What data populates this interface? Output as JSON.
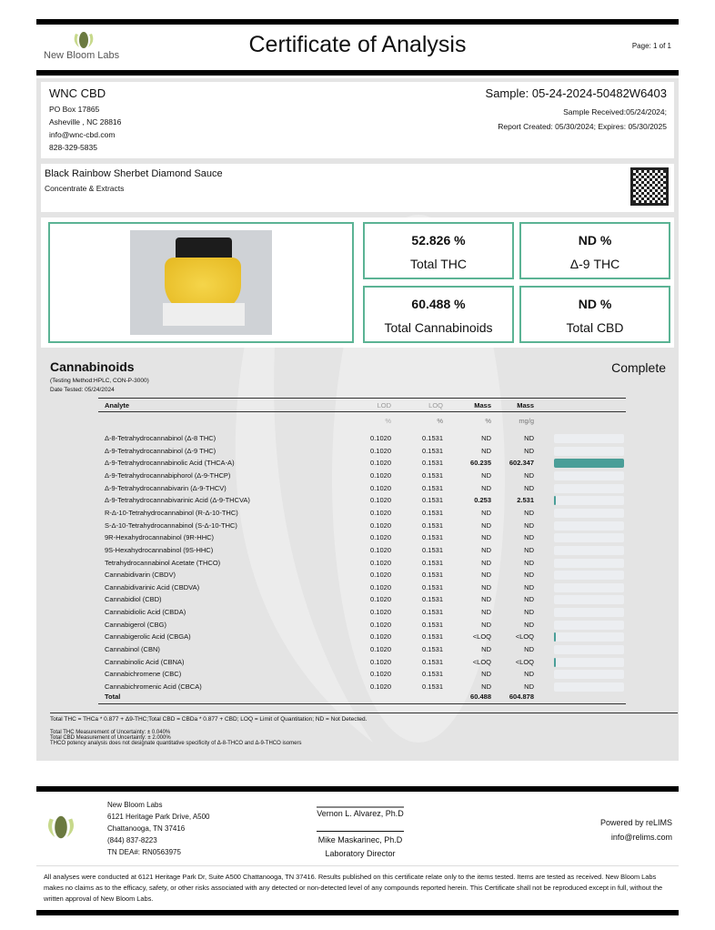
{
  "header": {
    "lab_name": "New Bloom Labs",
    "title": "Certificate of Analysis",
    "page": "Page: 1 of 1"
  },
  "client": {
    "name": "WNC CBD",
    "address1": "PO Box 17865",
    "address2": "Asheville , NC 28816",
    "email": "info@wnc-cbd.com",
    "phone": "828-329-5835"
  },
  "sample": {
    "id": "Sample: 05-24-2024-50482W6403",
    "received": "Sample Received:05/24/2024;",
    "report": "Report Created: 05/30/2024; Expires: 05/30/2025"
  },
  "product": {
    "name": "Black Rainbow Sherbet Diamond Sauce",
    "category": "Concentrate & Extracts"
  },
  "summary": [
    {
      "value": "52.826 %",
      "label": "Total THC"
    },
    {
      "value": "ND %",
      "label": "Δ-9 THC"
    },
    {
      "value": "60.488 %",
      "label": "Total Cannabinoids"
    },
    {
      "value": "ND %",
      "label": "Total CBD"
    }
  ],
  "cannabinoids": {
    "title": "Cannabinoids",
    "status": "Complete",
    "method": "(Testing Method:HPLC, CON-P-3000)",
    "date": "Date Tested: 05/24/2024",
    "headers": [
      "Analyte",
      "LOD",
      "LOQ",
      "Mass",
      "Mass"
    ],
    "units": [
      "",
      "%",
      "%",
      "%",
      "mg/g"
    ],
    "rows": [
      [
        "Δ-8-Tetrahydrocannabinol (Δ-8 THC)",
        "0.1020",
        "0.1531",
        "ND",
        "ND"
      ],
      [
        "Δ-9-Tetrahydrocannabinol (Δ-9 THC)",
        "0.1020",
        "0.1531",
        "ND",
        "ND"
      ],
      [
        "Δ-9-Tetrahydrocannabinolic Acid (THCA-A)",
        "0.1020",
        "0.1531",
        "60.235",
        "602.347"
      ],
      [
        "Δ-9-Tetrahydrocannabiphorol (Δ-9-THCP)",
        "0.1020",
        "0.1531",
        "ND",
        "ND"
      ],
      [
        "Δ-9-Tetrahydrocannabivarin (Δ-9-THCV)",
        "0.1020",
        "0.1531",
        "ND",
        "ND"
      ],
      [
        "Δ-9-Tetrahydrocannabivarinic Acid (Δ-9-THCVA)",
        "0.1020",
        "0.1531",
        "0.253",
        "2.531"
      ],
      [
        "R-Δ-10-Tetrahydrocannabinol (R-Δ-10-THC)",
        "0.1020",
        "0.1531",
        "ND",
        "ND"
      ],
      [
        "S-Δ-10-Tetrahydrocannabinol (S-Δ-10-THC)",
        "0.1020",
        "0.1531",
        "ND",
        "ND"
      ],
      [
        "9R-Hexahydrocannabinol (9R-HHC)",
        "0.1020",
        "0.1531",
        "ND",
        "ND"
      ],
      [
        "9S-Hexahydrocannabinol (9S-HHC)",
        "0.1020",
        "0.1531",
        "ND",
        "ND"
      ],
      [
        "Tetrahydrocannabinol Acetate (THCO)",
        "0.1020",
        "0.1531",
        "ND",
        "ND"
      ],
      [
        "Cannabidivarin (CBDV)",
        "0.1020",
        "0.1531",
        "ND",
        "ND"
      ],
      [
        "Cannabidivarinic Acid (CBDVA)",
        "0.1020",
        "0.1531",
        "ND",
        "ND"
      ],
      [
        "Cannabidiol (CBD)",
        "0.1020",
        "0.1531",
        "ND",
        "ND"
      ],
      [
        "Cannabidiolic Acid (CBDA)",
        "0.1020",
        "0.1531",
        "ND",
        "ND"
      ],
      [
        "Cannabigerol (CBG)",
        "0.1020",
        "0.1531",
        "ND",
        "ND"
      ],
      [
        "Cannabigerolic Acid (CBGA)",
        "0.1020",
        "0.1531",
        "<LOQ",
        "<LOQ"
      ],
      [
        "Cannabinol (CBN)",
        "0.1020",
        "0.1531",
        "ND",
        "ND"
      ],
      [
        "Cannabinolic Acid (CBNA)",
        "0.1020",
        "0.1531",
        "<LOQ",
        "<LOQ"
      ],
      [
        "Cannabichromene (CBC)",
        "0.1020",
        "0.1531",
        "ND",
        "ND"
      ],
      [
        "Cannabichromenic Acid (CBCA)",
        "0.1020",
        "0.1531",
        "ND",
        "ND"
      ]
    ],
    "total": [
      "Total",
      "",
      "",
      "60.488",
      "604.878"
    ],
    "bar_color": "#4a9e98"
  },
  "notes": {
    "formula": "Total THC = THCa * 0.877 + Δ9-THC;Total CBD = CBDa * 0.877 + CBD; LOQ = Limit of Quantitation; ND = Not Detected.",
    "u1": "Total THC Measurement of Uncertainty: ± 0.040%",
    "u2": "Total CBD Measurement of Uncertainty: ± 2.000%",
    "u3": "THCO potency analysis does not designate quantitative specificity of Δ-8-THCO and Δ-9-THCO isomers"
  },
  "footer": {
    "lab": "New Bloom Labs",
    "addr1": "6121 Heritage Park Drive, A500",
    "addr2": "Chattanooga, TN 37416",
    "phone": "(844) 837-8223",
    "dea": "TN DEA#: RN0563975",
    "sig1": "Vernon L. Alvarez, Ph.D",
    "sig2": "Mike Maskarinec, Ph.D",
    "sig2_title": "Laboratory Director",
    "powered": "Powered by reLIMS",
    "powered_email": "info@relims.com",
    "disclaimer": "All analyses were conducted at 6121 Heritage Park Dr, Suite A500 Chattanooga, TN 37416. Results published on this certificate relate only to the items tested. Items are tested as received. New Bloom Labs makes no claims as to the efficacy, safety, or other risks associated with any detected or non-detected level of any compounds reported herein. This Certificate shall not be reproduced except in full, without the written approval of New Bloom Labs."
  }
}
